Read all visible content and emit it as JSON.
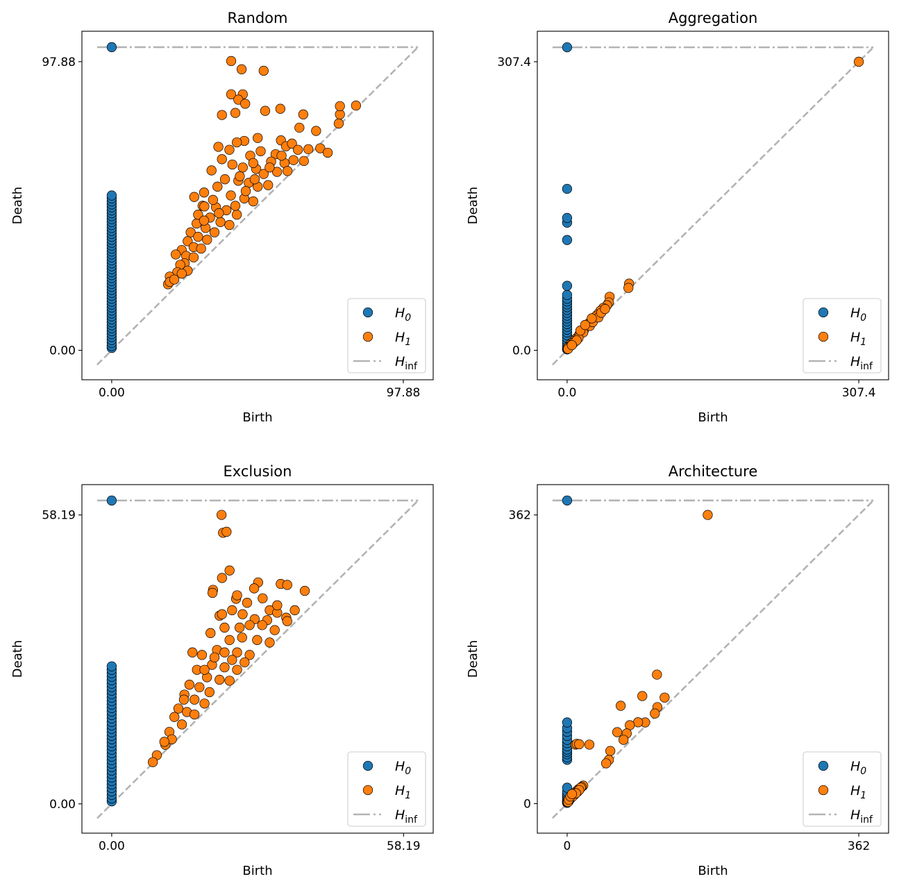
{
  "colors": {
    "H0": "#1f77b4",
    "H1": "#ff7f0e",
    "Hinf": "#b3b3b3",
    "marker_edge": "#000000"
  },
  "chart_data": [
    {
      "type": "scatter",
      "title": "Random",
      "xlabel": "Birth",
      "ylabel": "Death",
      "xlim": [
        -10.0,
        107.9
      ],
      "ylim": [
        -10.0,
        108.2
      ],
      "xticks": [
        {
          "value": 0,
          "label": "0.00"
        },
        {
          "value": 97.88,
          "label": "97.88"
        }
      ],
      "yticks": [
        {
          "value": 0,
          "label": "0.00"
        },
        {
          "value": 97.88,
          "label": "97.88"
        }
      ],
      "diagonal": [
        -4.9,
        102.8
      ],
      "inf_value": 102.8,
      "legend": {
        "placement": "lower right",
        "entries": [
          {
            "symbol": "H",
            "sub": "0"
          },
          {
            "symbol": "H",
            "sub": "1"
          },
          {
            "symbol": "H",
            "sub": "inf"
          }
        ]
      },
      "H0": {
        "births": 0,
        "infinite_count": 1,
        "deaths": [
          52.5,
          51.5,
          50.5,
          49.5,
          48.5,
          47.5,
          46.5,
          45.5,
          44.5,
          43.5,
          42.5,
          41.5,
          40.5,
          39.5,
          38.5,
          37.5,
          36.5,
          35.5,
          34.5,
          33.5,
          32.5,
          31.5,
          30.5,
          29.5,
          28.5,
          27.5,
          26.5,
          25.5,
          24.5,
          23.5,
          22.5,
          21.5,
          20.5,
          19.5,
          18.5,
          17.5,
          16.5,
          15.5,
          14.5,
          13.5,
          12.5,
          11.5,
          10.5,
          9.5,
          8.5,
          7.5,
          6.5,
          5.5,
          4.5,
          3.5,
          2.5,
          1.5,
          0.8
        ]
      },
      "H1": [
        [
          40.1,
          98.1
        ],
        [
          43.6,
          95.3
        ],
        [
          51.0,
          94.8
        ],
        [
          40.1,
          86.8
        ],
        [
          44.0,
          86.8
        ],
        [
          42.5,
          85.0
        ],
        [
          44.8,
          83.6
        ],
        [
          37.0,
          79.8
        ],
        [
          41.5,
          80.5
        ],
        [
          51.5,
          81.2
        ],
        [
          56.6,
          81.9
        ],
        [
          64.3,
          80.0
        ],
        [
          76.6,
          80.0
        ],
        [
          76.6,
          82.8
        ],
        [
          82.0,
          83.0
        ],
        [
          76.2,
          76.9
        ],
        [
          68.6,
          74.4
        ],
        [
          63.0,
          75.5
        ],
        [
          49.0,
          72.0
        ],
        [
          44.5,
          71.0
        ],
        [
          42.0,
          70.5
        ],
        [
          35.8,
          69.0
        ],
        [
          39.5,
          68.0
        ],
        [
          56.8,
          71.2
        ],
        [
          58.5,
          69.2
        ],
        [
          60.5,
          70.1
        ],
        [
          62.5,
          68.0
        ],
        [
          66.0,
          68.2
        ],
        [
          70.0,
          68.5
        ],
        [
          72.5,
          67.0
        ],
        [
          50.0,
          67.5
        ],
        [
          55.0,
          66.5
        ],
        [
          46.5,
          66.0
        ],
        [
          53.5,
          64.0
        ],
        [
          58.0,
          63.5
        ],
        [
          61.0,
          64.5
        ],
        [
          64.5,
          64.2
        ],
        [
          37.0,
          64.8
        ],
        [
          33.5,
          61.0
        ],
        [
          40.5,
          63.0
        ],
        [
          44.0,
          62.0
        ],
        [
          48.5,
          61.5
        ],
        [
          51.0,
          59.8
        ],
        [
          55.5,
          60.5
        ],
        [
          59.0,
          60.8
        ],
        [
          38.0,
          58.0
        ],
        [
          42.5,
          57.5
        ],
        [
          46.0,
          56.8
        ],
        [
          49.0,
          55.5
        ],
        [
          52.5,
          56.0
        ],
        [
          35.5,
          55.5
        ],
        [
          31.0,
          53.5
        ],
        [
          27.7,
          52.0
        ],
        [
          40.0,
          52.5
        ],
        [
          44.5,
          51.5
        ],
        [
          47.5,
          50.5
        ],
        [
          30.5,
          49.0
        ],
        [
          31.1,
          48.8
        ],
        [
          35.0,
          48.5
        ],
        [
          38.5,
          47.5
        ],
        [
          42.0,
          46.0
        ],
        [
          33.0,
          45.0
        ],
        [
          36.5,
          43.5
        ],
        [
          39.5,
          42.5
        ],
        [
          28.5,
          43.0
        ],
        [
          31.5,
          41.5
        ],
        [
          34.5,
          40.0
        ],
        [
          26.5,
          40.0
        ],
        [
          29.0,
          38.5
        ],
        [
          32.0,
          37.5
        ],
        [
          25.5,
          37.0
        ],
        [
          27.5,
          35.0
        ],
        [
          30.0,
          34.5
        ],
        [
          23.5,
          34.0
        ],
        [
          25.0,
          32.0
        ],
        [
          27.5,
          31.5
        ],
        [
          24.5,
          29.5
        ],
        [
          21.5,
          32.5
        ],
        [
          23.0,
          29.0
        ],
        [
          25.5,
          27.0
        ],
        [
          22.0,
          26.5
        ],
        [
          19.5,
          25.0
        ],
        [
          18.9,
          22.4
        ],
        [
          19.5,
          23.2
        ],
        [
          21.0,
          24.0
        ],
        [
          23.5,
          26.0
        ],
        [
          36.0,
          46.5
        ],
        [
          41.5,
          49.0
        ],
        [
          45.0,
          54.0
        ],
        [
          48.0,
          58.0
        ],
        [
          53.0,
          62.0
        ],
        [
          57.0,
          66.0
        ],
        [
          34.0,
          51.0
        ],
        [
          29.0,
          46.0
        ],
        [
          31.0,
          44.0
        ],
        [
          43.0,
          59.0
        ],
        [
          47.5,
          63.5
        ]
      ]
    },
    {
      "type": "scatter",
      "title": "Aggregation",
      "xlabel": "Birth",
      "ylabel": "Death",
      "xlim": [
        -31.4,
        338.8
      ],
      "ylim": [
        -31.4,
        339.9
      ],
      "xticks": [
        {
          "value": 0,
          "label": "0.0"
        },
        {
          "value": 307.4,
          "label": "307.4"
        }
      ],
      "yticks": [
        {
          "value": 0,
          "label": "0.0"
        },
        {
          "value": 307.4,
          "label": "307.4"
        }
      ],
      "diagonal": [
        -15.4,
        322.8
      ],
      "inf_value": 322.8,
      "legend": {
        "placement": "lower right",
        "entries": [
          {
            "symbol": "H",
            "sub": "0"
          },
          {
            "symbol": "H",
            "sub": "1"
          },
          {
            "symbol": "H",
            "sub": "inf"
          }
        ]
      },
      "H0": {
        "births": 0,
        "infinite_count": 1,
        "deaths": [
          172,
          141,
          136,
          117.5,
          68.7,
          59,
          55,
          52,
          49,
          46,
          43,
          40,
          37,
          34,
          31,
          28,
          25,
          22,
          19,
          16,
          13,
          10,
          7,
          4,
          2,
          1
        ]
      },
      "H1": [
        [
          307.4,
          307.4
        ],
        [
          65.3,
          71
        ],
        [
          64.6,
          66.5
        ],
        [
          44.8,
          57
        ],
        [
          44,
          51
        ],
        [
          42,
          48
        ],
        [
          38,
          45
        ],
        [
          35,
          42
        ],
        [
          32,
          38
        ],
        [
          30,
          36
        ],
        [
          28,
          33
        ],
        [
          25,
          31
        ],
        [
          22,
          28
        ],
        [
          20,
          25
        ],
        [
          18,
          22
        ],
        [
          15,
          20
        ],
        [
          13,
          17
        ],
        [
          11,
          14
        ],
        [
          9,
          12
        ],
        [
          7,
          10
        ],
        [
          5,
          8
        ],
        [
          3,
          6
        ],
        [
          2,
          4
        ],
        [
          1,
          3
        ],
        [
          4,
          5
        ],
        [
          6,
          7
        ],
        [
          8,
          9
        ],
        [
          24,
          26
        ],
        [
          27,
          30
        ],
        [
          33,
          35
        ],
        [
          36,
          40
        ],
        [
          40,
          44
        ],
        [
          17,
          19
        ],
        [
          12,
          13
        ],
        [
          10,
          10.5
        ],
        [
          1,
          1.5
        ],
        [
          14,
          21
        ],
        [
          19,
          27
        ],
        [
          26,
          34
        ],
        [
          5,
          5.5
        ]
      ]
    },
    {
      "type": "scatter",
      "title": "Exclusion",
      "xlabel": "Birth",
      "ylabel": "Death",
      "xlim": [
        -5.94,
        64.1
      ],
      "ylim": [
        -5.9,
        64.3
      ],
      "xticks": [
        {
          "value": 0,
          "label": "0.00"
        },
        {
          "value": 58.19,
          "label": "58.19"
        }
      ],
      "yticks": [
        {
          "value": 0,
          "label": "0.00"
        },
        {
          "value": 58.19,
          "label": "58.19"
        }
      ],
      "diagonal": [
        -2.9,
        61.1
      ],
      "inf_value": 61.1,
      "legend": {
        "placement": "lower right",
        "entries": [
          {
            "symbol": "H",
            "sub": "0"
          },
          {
            "symbol": "H",
            "sub": "1"
          },
          {
            "symbol": "H",
            "sub": "inf"
          }
        ]
      },
      "H0": {
        "births": 0,
        "infinite_count": 1,
        "deaths": [
          27.7,
          27.0,
          26.3,
          25.6,
          24.9,
          24.2,
          23.5,
          22.8,
          22.1,
          21.4,
          20.7,
          20.0,
          19.3,
          18.6,
          17.9,
          17.2,
          16.5,
          15.8,
          15.1,
          14.4,
          13.7,
          13.0,
          12.3,
          11.6,
          10.9,
          10.2,
          9.5,
          8.8,
          8.1,
          7.4,
          6.7,
          6.0,
          5.3,
          4.6,
          3.9,
          3.2,
          2.5,
          1.8,
          1.1,
          0.5
        ]
      },
      "H1": [
        [
          21.9,
          58.2
        ],
        [
          22.2,
          54.6
        ],
        [
          22.9,
          54.8
        ],
        [
          22.0,
          45.5
        ],
        [
          29.2,
          44.6
        ],
        [
          33.7,
          44.3
        ],
        [
          35.0,
          44.1
        ],
        [
          38.5,
          42.9
        ],
        [
          20.2,
          43.1
        ],
        [
          20.1,
          42.5
        ],
        [
          28.4,
          43.4
        ],
        [
          24.8,
          41.3
        ],
        [
          30.1,
          41.4
        ],
        [
          21.5,
          37.9
        ],
        [
          22.0,
          38.2
        ],
        [
          26.1,
          38.2
        ],
        [
          31.5,
          39.0
        ],
        [
          33.0,
          38.5
        ],
        [
          34.8,
          37.5
        ],
        [
          35.0,
          36.8
        ],
        [
          31.0,
          37.0
        ],
        [
          28.5,
          37.2
        ],
        [
          19.7,
          34.4
        ],
        [
          22.5,
          35.5
        ],
        [
          25.5,
          35.5
        ],
        [
          27.5,
          36.0
        ],
        [
          30.0,
          36.0
        ],
        [
          32.5,
          35.0
        ],
        [
          23.5,
          33.0
        ],
        [
          26.0,
          33.5
        ],
        [
          29.0,
          33.0
        ],
        [
          31.5,
          32.5
        ],
        [
          16.1,
          30.5
        ],
        [
          18.0,
          30.0
        ],
        [
          21.0,
          31.0
        ],
        [
          22.5,
          30.5
        ],
        [
          25.0,
          30.5
        ],
        [
          27.5,
          30.0
        ],
        [
          20.0,
          28.0
        ],
        [
          22.5,
          27.5
        ],
        [
          25.0,
          27.0
        ],
        [
          17.0,
          27.0
        ],
        [
          19.0,
          25.5
        ],
        [
          21.5,
          25.0
        ],
        [
          23.5,
          24.8
        ],
        [
          15.5,
          24.0
        ],
        [
          17.5,
          23.5
        ],
        [
          19.5,
          22.5
        ],
        [
          14.5,
          22.0
        ],
        [
          16.5,
          21.0
        ],
        [
          18.5,
          20.2
        ],
        [
          13.3,
          19.2
        ],
        [
          14.4,
          21.0
        ],
        [
          15.0,
          18.5
        ],
        [
          16.5,
          18.0
        ],
        [
          12.5,
          17.5
        ],
        [
          14.0,
          16.0
        ],
        [
          11.5,
          14.5
        ],
        [
          10.7,
          11.9
        ],
        [
          12.0,
          13.0
        ],
        [
          9.0,
          9.8
        ],
        [
          8.2,
          8.4
        ],
        [
          10.5,
          12.5
        ],
        [
          24.0,
          29.0
        ],
        [
          26.5,
          28.5
        ],
        [
          20.5,
          29.5
        ],
        [
          18.5,
          27.0
        ],
        [
          24.0,
          39.0
        ],
        [
          27.0,
          40.5
        ],
        [
          33.0,
          40.0
        ],
        [
          36.5,
          39.0
        ],
        [
          23.5,
          47.0
        ],
        [
          25.0,
          42.0
        ]
      ]
    },
    {
      "type": "scatter",
      "title": "Architecture",
      "xlabel": "Birth",
      "ylabel": "Death",
      "xlim": [
        -37,
        399
      ],
      "ylim": [
        -37,
        400
      ],
      "xticks": [
        {
          "value": 0,
          "label": "0"
        },
        {
          "value": 362,
          "label": "362"
        }
      ],
      "yticks": [
        {
          "value": 0,
          "label": "0"
        },
        {
          "value": 362,
          "label": "362"
        }
      ],
      "diagonal": [
        -18.1,
        380.1
      ],
      "inf_value": 380.1,
      "legend": {
        "placement": "lower right",
        "entries": [
          {
            "symbol": "H",
            "sub": "0"
          },
          {
            "symbol": "H",
            "sub": "1"
          },
          {
            "symbol": "H",
            "sub": "inf"
          }
        ]
      },
      "H0": {
        "births": 0,
        "infinite_count": 1,
        "deaths": [
          101.8,
          94.8,
          90,
          85,
          80,
          76,
          72,
          68,
          65,
          62,
          58,
          55,
          20,
          15,
          12,
          10,
          8,
          6,
          4,
          3,
          2,
          1
        ]
      },
      "H1": [
        [
          174.5,
          362
        ],
        [
          111.5,
          161.8
        ],
        [
          93.3,
          134.9
        ],
        [
          121,
          133
        ],
        [
          112,
          121
        ],
        [
          66.5,
          122.7
        ],
        [
          108.9,
          113
        ],
        [
          96.8,
          101.8
        ],
        [
          88,
          102
        ],
        [
          77.8,
          98.3
        ],
        [
          62.2,
          89.6
        ],
        [
          74,
          88
        ],
        [
          70,
          80
        ],
        [
          27.6,
          74
        ],
        [
          10.4,
          74
        ],
        [
          12,
          75
        ],
        [
          15,
          74.5
        ],
        [
          53.6,
          66
        ],
        [
          51.8,
          54.8
        ],
        [
          48.4,
          50.5
        ],
        [
          20,
          22.6
        ],
        [
          18,
          21
        ],
        [
          16,
          19
        ],
        [
          14,
          18
        ],
        [
          12,
          16
        ],
        [
          10,
          14
        ],
        [
          8,
          12
        ],
        [
          6,
          10
        ],
        [
          5,
          8
        ],
        [
          4,
          6
        ],
        [
          3,
          5
        ],
        [
          2,
          3
        ],
        [
          1,
          2
        ],
        [
          17,
          20
        ],
        [
          13,
          15
        ],
        [
          9,
          11
        ],
        [
          7,
          9
        ],
        [
          15,
          17
        ],
        [
          11,
          13
        ],
        [
          2,
          5
        ],
        [
          4,
          9
        ],
        [
          6,
          12
        ]
      ]
    }
  ]
}
